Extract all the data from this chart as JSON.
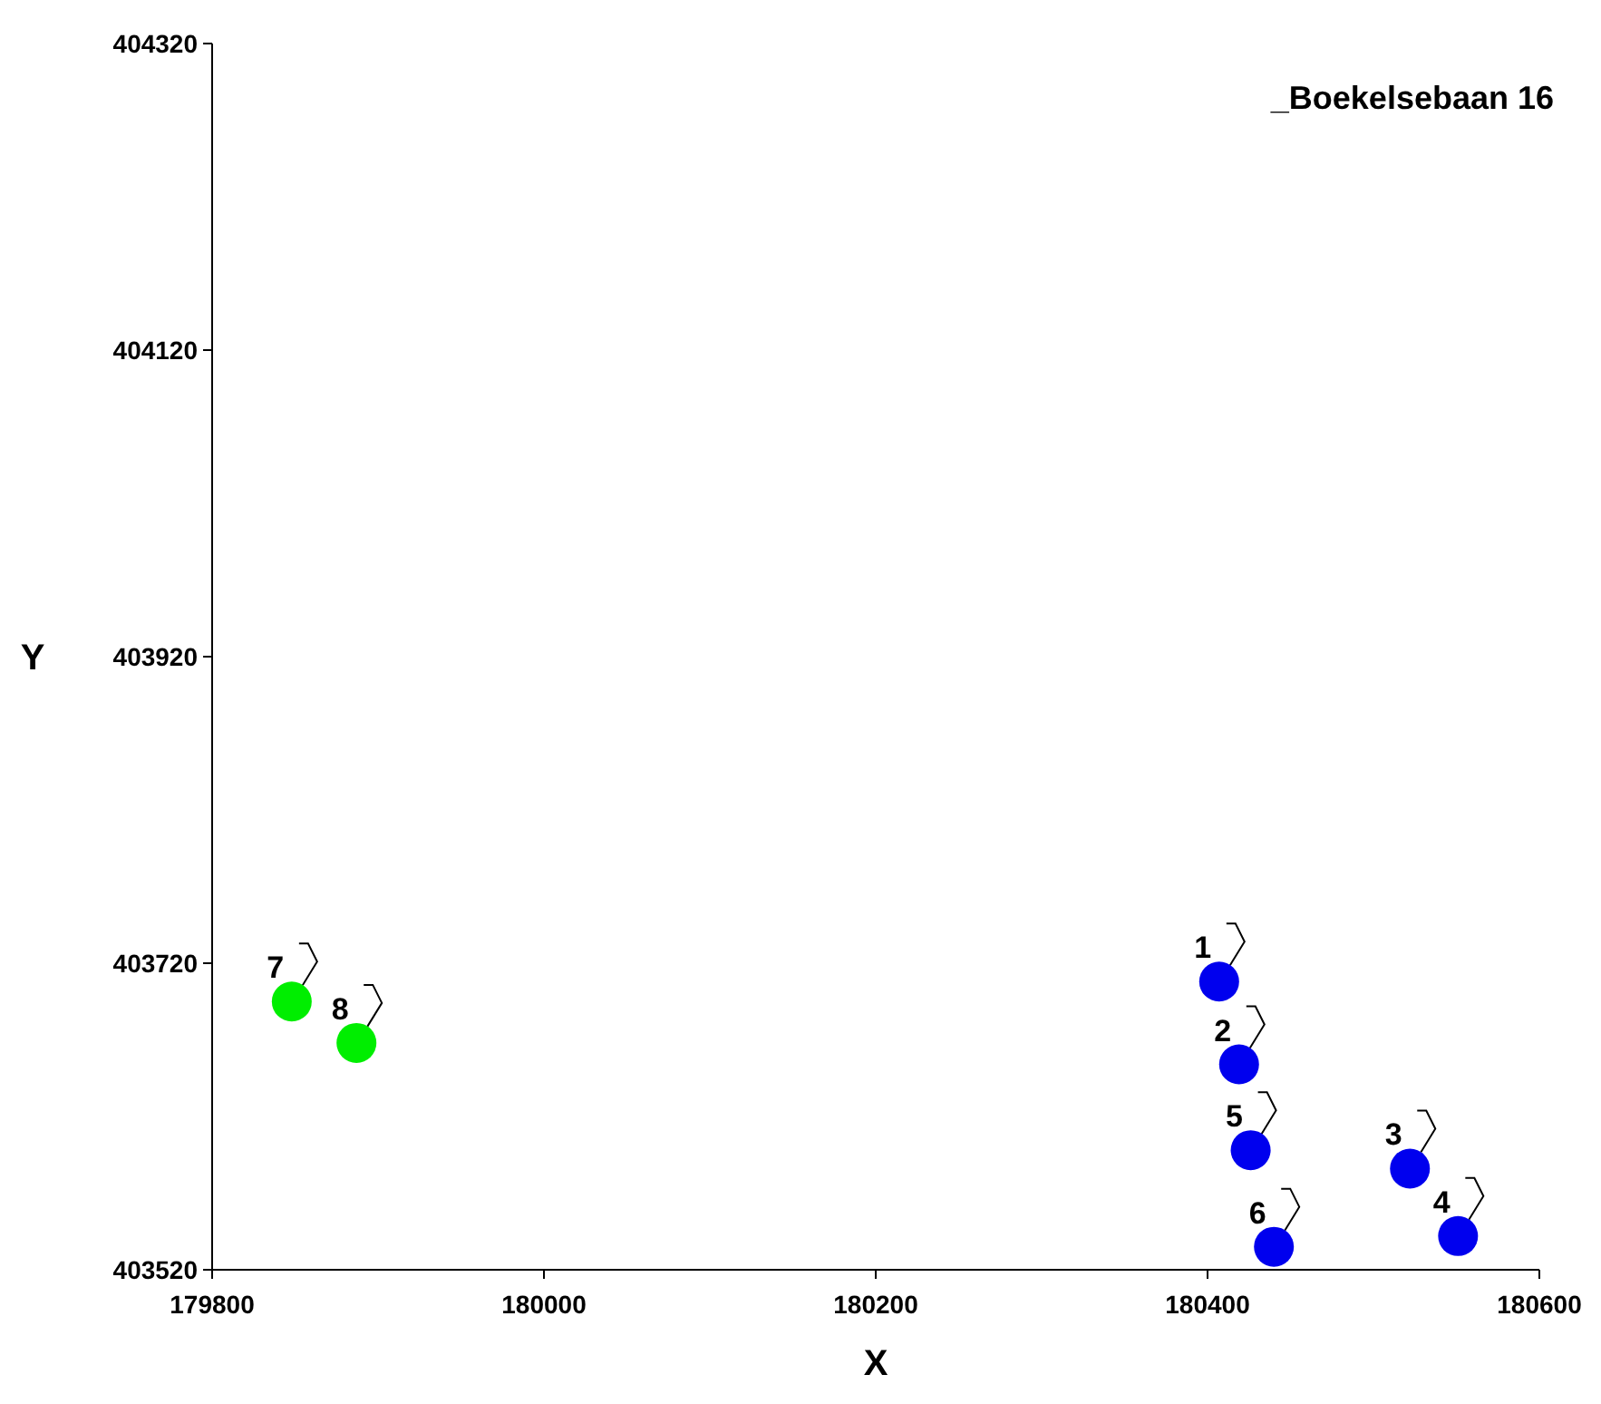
{
  "chart_data": {
    "type": "scatter",
    "title": "_Boekelsebaan 16",
    "xlabel": "X",
    "ylabel": "Y",
    "xlim": [
      179800,
      180600
    ],
    "xticks": [
      179800,
      180000,
      180200,
      180400,
      180600
    ],
    "ylim": [
      403520,
      404320
    ],
    "yticks": [
      403520,
      403720,
      403920,
      404120,
      404320
    ],
    "grid": false,
    "legend": false,
    "marker": "circle",
    "series": [
      {
        "color": "#00ee00",
        "x": [
          179848,
          179887
        ],
        "values": [
          403695,
          403668
        ]
      },
      {
        "color": "#0000ee",
        "x": [
          180407,
          180419,
          180522,
          180551,
          180426,
          180440
        ],
        "values": [
          403708,
          403654,
          403586,
          403542,
          403598,
          403535
        ]
      }
    ],
    "annotations": [
      {
        "text": "7",
        "x": 179848,
        "y": 403695
      },
      {
        "text": "8",
        "x": 179887,
        "y": 403668
      },
      {
        "text": "1",
        "x": 180407,
        "y": 403708
      },
      {
        "text": "2",
        "x": 180419,
        "y": 403654
      },
      {
        "text": "3",
        "x": 180522,
        "y": 403586
      },
      {
        "text": "4",
        "x": 180551,
        "y": 403542
      },
      {
        "text": "5",
        "x": 180426,
        "y": 403598
      },
      {
        "text": "6",
        "x": 180440,
        "y": 403535
      }
    ]
  }
}
